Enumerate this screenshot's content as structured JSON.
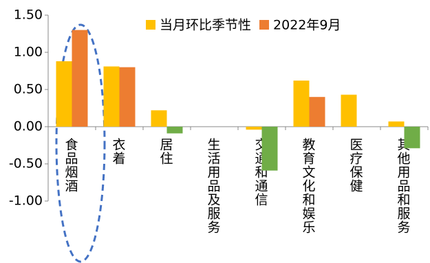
{
  "chart_data": {
    "type": "bar",
    "categories": [
      "食品烟酒",
      "衣着",
      "居住",
      "生活用品及服务",
      "交通和通信",
      "教育文化和娱乐",
      "医疗保健",
      "其他用品和服务"
    ],
    "series": [
      {
        "name": "当月环比季节性",
        "color": "#ffc000",
        "values": [
          0.88,
          0.81,
          0.22,
          0,
          -0.04,
          0.62,
          0.43,
          0.07
        ]
      },
      {
        "name": "2022年9月",
        "color": "#ed7d31",
        "negative_color": "#70ad47",
        "values": [
          1.3,
          0.8,
          -0.09,
          0,
          -0.59,
          0.4,
          0,
          -0.29
        ]
      }
    ],
    "ylim": [
      -1,
      1.5
    ],
    "yticks": [
      {
        "value": -1,
        "label": "-1.00"
      },
      {
        "value": -0.5,
        "label": "-0.50"
      },
      {
        "value": 0,
        "label": "0.00"
      },
      {
        "value": 0.5,
        "label": "0.50"
      },
      {
        "value": 1,
        "label": "1.00"
      },
      {
        "value": 1.5,
        "label": "1.50"
      }
    ],
    "legend": "top-right"
  }
}
